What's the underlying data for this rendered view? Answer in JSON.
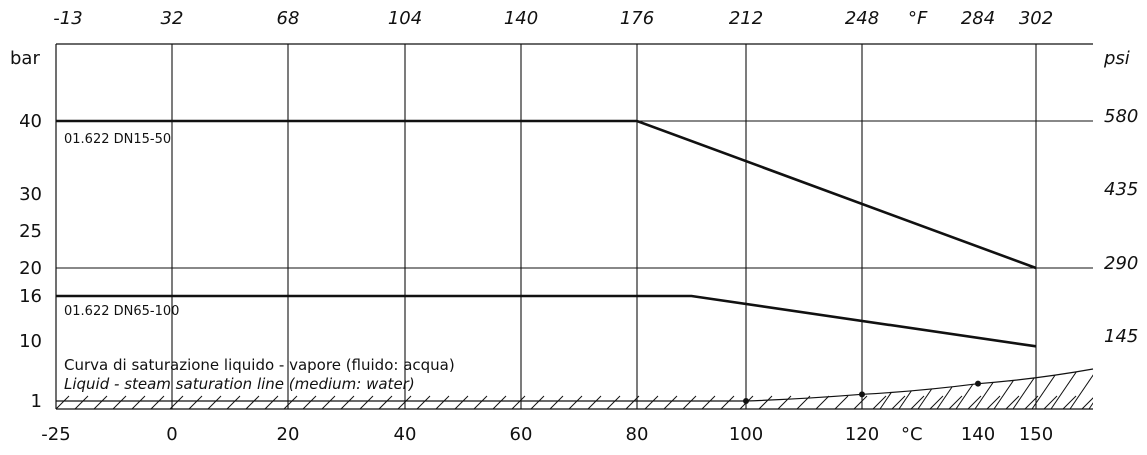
{
  "chart_data": {
    "type": "line",
    "x_axis": {
      "unit_label": "°C",
      "ticks": [
        -25,
        0,
        20,
        40,
        60,
        80,
        100,
        120,
        140,
        150
      ],
      "range": [
        -25,
        158
      ]
    },
    "x_axis_top": {
      "unit_label": "°F",
      "ticks": [
        "-13",
        "32",
        "68",
        "104",
        "140",
        "176",
        "212",
        "248",
        "284",
        "302"
      ]
    },
    "y_axis_left": {
      "unit_label": "bar",
      "ticks": [
        1,
        10,
        16,
        20,
        25,
        30,
        40
      ]
    },
    "y_axis_right": {
      "unit_label": "psi",
      "ticks": [
        {
          "label": "580",
          "bar": 40
        },
        {
          "label": "435",
          "bar": 30
        },
        {
          "label": "290",
          "bar": 20
        },
        {
          "label": "145",
          "bar": 10
        }
      ]
    },
    "series": [
      {
        "name": "01.622 DN15-50",
        "points": [
          [
            -25,
            40
          ],
          [
            80,
            40
          ],
          [
            150,
            20
          ]
        ]
      },
      {
        "name": "01.622 DN65-100",
        "points": [
          [
            -25,
            16
          ],
          [
            90,
            16
          ],
          [
            150,
            9.2
          ]
        ]
      }
    ],
    "saturation_curve": {
      "points": [
        [
          100,
          1
        ],
        [
          120,
          2
        ],
        [
          140,
          3.6
        ],
        [
          158,
          5.8
        ]
      ],
      "markers": [
        100,
        120,
        140
      ]
    },
    "annotations": [
      "Curva di saturazione liquido - vapore (fluido: acqua)",
      "Liquid - steam saturation line (medium: water)"
    ],
    "grid": true,
    "vertical_gridlines_at": [
      0,
      20,
      40,
      60,
      80,
      100,
      120,
      150
    ],
    "horizontal_gridlines_at": [
      40,
      20
    ]
  }
}
